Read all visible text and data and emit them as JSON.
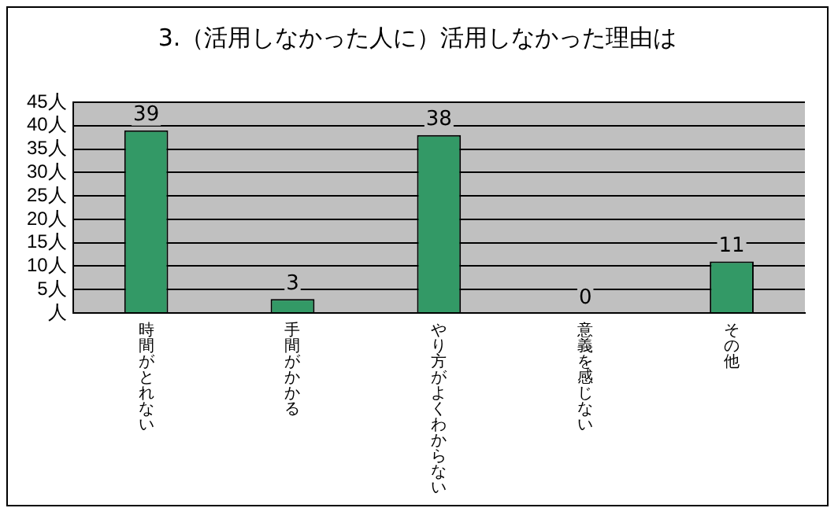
{
  "chart_data": {
    "type": "bar",
    "title": "3.（活用しなかった人に）活用しなかった理由は",
    "categories": [
      "時間がとれない",
      "手間がかかる",
      "やり方がよくわからない",
      "意義を感じない",
      "その他"
    ],
    "values": [
      39,
      3,
      38,
      0,
      11
    ],
    "color": "#339966",
    "ylim": [
      0,
      45
    ],
    "yticks": [
      {
        "value": 0,
        "label": "人"
      },
      {
        "value": 5,
        "label": "5人"
      },
      {
        "value": 10,
        "label": "10人"
      },
      {
        "value": 15,
        "label": "15人"
      },
      {
        "value": 20,
        "label": "20人"
      },
      {
        "value": 25,
        "label": "25人"
      },
      {
        "value": 30,
        "label": "30人"
      },
      {
        "value": 35,
        "label": "35人"
      },
      {
        "value": 40,
        "label": "40人"
      },
      {
        "value": 45,
        "label": "45人"
      }
    ],
    "grid": "y",
    "data_labels": true
  }
}
